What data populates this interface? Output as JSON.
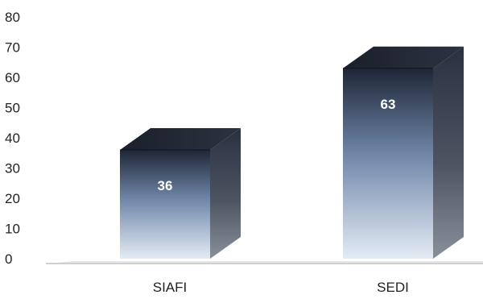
{
  "chart_data": {
    "type": "bar",
    "categories": [
      "SIAFI",
      "SEDI"
    ],
    "values": [
      36,
      63
    ],
    "ylim": [
      0,
      80
    ],
    "yticks": [
      0,
      10,
      20,
      30,
      40,
      50,
      60,
      70,
      80
    ],
    "grid": false,
    "legend": "none",
    "data_labels": true,
    "colors": {
      "bar_top": "#1e2636",
      "bar_mid": "#6f86a8",
      "bar_bottom": "#e4ebf5",
      "bar_side": "#454c58",
      "axis": "#cfcfcf"
    }
  }
}
